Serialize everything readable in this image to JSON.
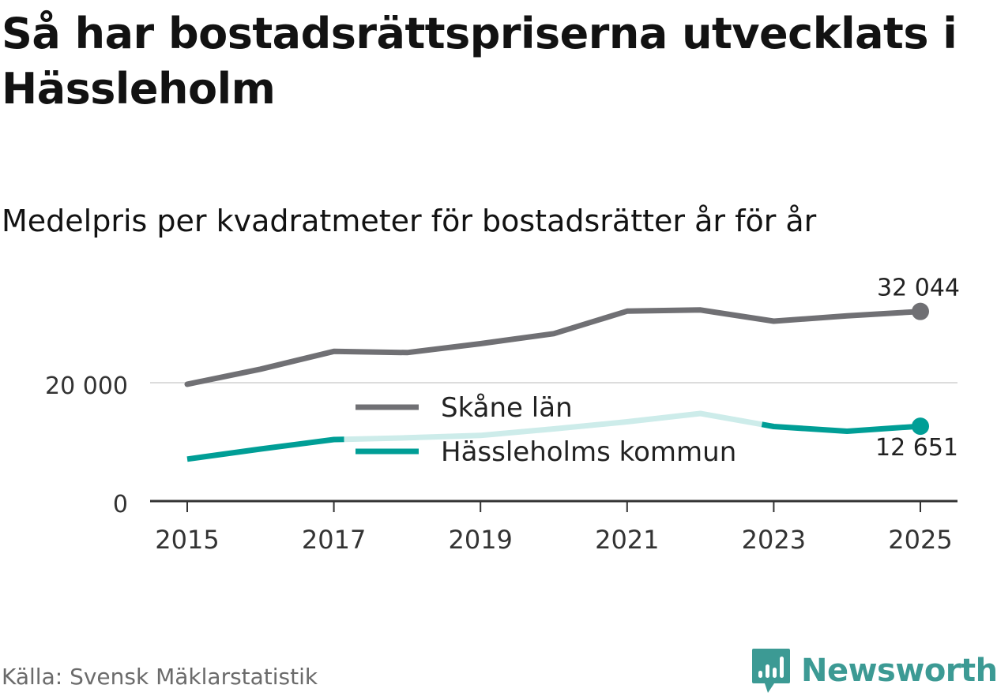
{
  "title": "Så har bostadsrättspriserna utvecklats i Hässleholm",
  "subtitle": "Medelpris per kvadratmeter för bostadsrätter år för år",
  "source": "Källa: Svensk Mäklarstatistik",
  "brand": {
    "name": "Newsworthy",
    "color": "#3c9a94"
  },
  "chart_data": {
    "type": "line",
    "x": [
      2015,
      2016,
      2017,
      2018,
      2019,
      2020,
      2021,
      2022,
      2023,
      2024,
      2025
    ],
    "x_ticks": [
      "2015",
      "2017",
      "2019",
      "2021",
      "2023",
      "2025"
    ],
    "y_ticks": [
      "0",
      "20 000"
    ],
    "y_tick_values": [
      0,
      20000
    ],
    "ylim": [
      0,
      34000
    ],
    "grid": true,
    "legend_position": "center",
    "series": [
      {
        "name": "Skåne län",
        "color": "#707074",
        "values": [
          19750,
          22300,
          25300,
          25100,
          26600,
          28300,
          32100,
          32300,
          30400,
          31300,
          32044
        ],
        "end_label": "32 044"
      },
      {
        "name": "Hässleholms kommun",
        "color": "#009e96",
        "faded_color": "#cdecea",
        "values": [
          7100,
          8800,
          10400,
          10700,
          11100,
          12200,
          13400,
          14800,
          12600,
          11800,
          12651
        ],
        "end_label": "12 651"
      }
    ]
  }
}
